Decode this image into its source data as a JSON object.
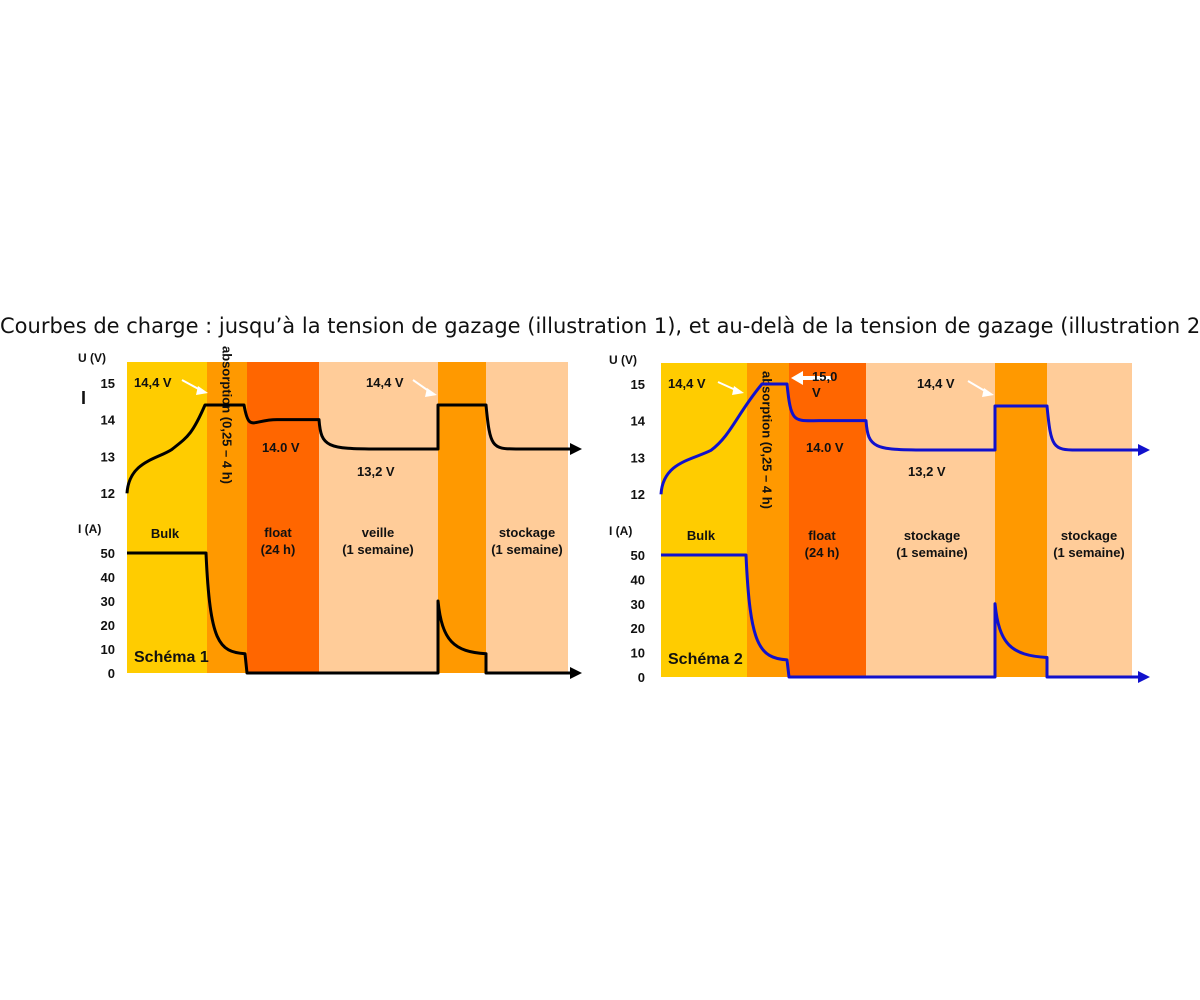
{
  "title": "Courbes de charge : jusqu’à la tension de gazage (illustration 1), et au-delà de la tension de gazage (illustration 2)",
  "colors": {
    "bulk": "#FFCC00",
    "absorption": "#FF9900",
    "float": "#FF6600",
    "rest": "#FFCC99",
    "curve_1": "#000000",
    "curve_2": "#1111CC"
  },
  "chart_data": [
    {
      "type": "line",
      "name": "Schéma 1",
      "label": "Schéma 1",
      "u_axis": {
        "label": "U (V)",
        "ticks": [
          "15",
          "14",
          "13",
          "12"
        ],
        "range": [
          12,
          15
        ]
      },
      "i_axis": {
        "label": "I (A)",
        "ticks": [
          "50",
          "40",
          "30",
          "20",
          "10",
          "0"
        ],
        "range": [
          0,
          50
        ]
      },
      "phases": [
        {
          "id": "bulk",
          "label": [
            "Bulk"
          ],
          "color": "bulk"
        },
        {
          "id": "absorption",
          "label": [
            "absorption (0,25 – 4 h)"
          ],
          "color": "absorption",
          "vertical": true
        },
        {
          "id": "float",
          "label": [
            "float",
            "(24 h)"
          ],
          "color": "float"
        },
        {
          "id": "veille",
          "label": [
            "veille",
            "(1 semaine)"
          ],
          "color": "rest"
        },
        {
          "id": "absorption2",
          "label": [],
          "color": "absorption"
        },
        {
          "id": "stockage",
          "label": [
            "stockage",
            "(1 semaine)"
          ],
          "color": "rest"
        }
      ],
      "annotations": [
        "14,4 V",
        "14.0 V",
        "13,2 V",
        "14,4 V"
      ],
      "voltage_values": {
        "absorption": 14.4,
        "float": 14.0,
        "rest": 13.2
      },
      "current_values": {
        "bulk": 50,
        "absorption_end": 8,
        "refresh_peak": 30,
        "after": 0
      },
      "cursor_mark": "I"
    },
    {
      "type": "line",
      "name": "Schéma 2",
      "label": "Schéma 2",
      "u_axis": {
        "label": "U (V)",
        "ticks": [
          "15",
          "14",
          "13",
          "12"
        ],
        "range": [
          12,
          15
        ]
      },
      "i_axis": {
        "label": "I (A)",
        "ticks": [
          "50",
          "40",
          "30",
          "20",
          "10",
          "0"
        ],
        "range": [
          0,
          50
        ]
      },
      "phases": [
        {
          "id": "bulk",
          "label": [
            "Bulk"
          ],
          "color": "bulk"
        },
        {
          "id": "absorption",
          "label": [
            "absorption (0,25 – 4 h)"
          ],
          "color": "absorption",
          "vertical": true
        },
        {
          "id": "float",
          "label": [
            "float",
            "(24 h)"
          ],
          "color": "float"
        },
        {
          "id": "stockage",
          "label": [
            "stockage",
            "(1 semaine)"
          ],
          "color": "rest"
        },
        {
          "id": "absorption2",
          "label": [],
          "color": "absorption"
        },
        {
          "id": "stockage2",
          "label": [
            "stockage",
            "(1 semaine)"
          ],
          "color": "rest"
        }
      ],
      "annotations": [
        "14,4 V",
        "15,0",
        "V",
        "14.0 V",
        "13,2 V",
        "14,4 V"
      ],
      "voltage_values": {
        "absorption_peak": 15.0,
        "refresh": 14.4,
        "float": 14.0,
        "rest": 13.2
      },
      "current_values": {
        "bulk": 50,
        "absorption_end": 7,
        "refresh_peak": 30,
        "after": 0
      }
    }
  ]
}
